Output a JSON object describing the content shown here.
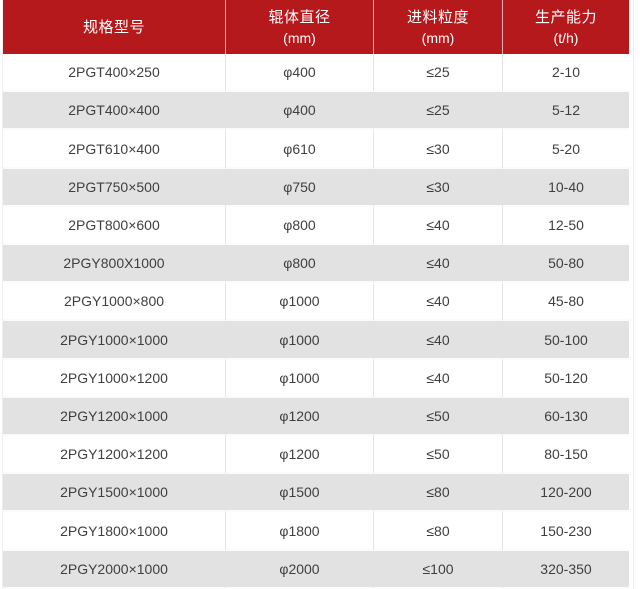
{
  "page": {
    "background": "#ffffff"
  },
  "colors": {
    "header_bg": "#b6191c",
    "header_text": "#ffffff",
    "row_bg": "#ffffff",
    "row_alt_bg": "#e2e2e2",
    "cell_text": "#3f3f3f",
    "grid_line": "#e4e4e4"
  },
  "table": {
    "columns": [
      {
        "title": "规格型号",
        "unit": ""
      },
      {
        "title": "辊体直径",
        "unit": "(mm)"
      },
      {
        "title": "进料粒度",
        "unit": "(mm)"
      },
      {
        "title": "生产能力",
        "unit": "(t/h)"
      }
    ],
    "rows": [
      [
        "2PGT400×250",
        "φ400",
        "≤25",
        "2-10"
      ],
      [
        "2PGT400×400",
        "φ400",
        "≤25",
        "5-12"
      ],
      [
        "2PGT610×400",
        "φ610",
        "≤30",
        "5-20"
      ],
      [
        "2PGT750×500",
        "φ750",
        "≤30",
        "10-40"
      ],
      [
        "2PGT800×600",
        "φ800",
        "≤40",
        "12-50"
      ],
      [
        "2PGY800X1000",
        "φ800",
        "≤40",
        "50-80"
      ],
      [
        "2PGY1000×800",
        "φ1000",
        "≤40",
        "45-80"
      ],
      [
        "2PGY1000×1000",
        "φ1000",
        "≤40",
        "50-100"
      ],
      [
        "2PGY1000×1200",
        "φ1000",
        "≤40",
        "50-120"
      ],
      [
        "2PGY1200×1000",
        "φ1200",
        "≤50",
        "60-130"
      ],
      [
        "2PGY1200×1200",
        "φ1200",
        "≤50",
        "80-150"
      ],
      [
        "2PGY1500×1000",
        "φ1500",
        "≤80",
        "120-200"
      ],
      [
        "2PGY1800×1000",
        "φ1800",
        "≤80",
        "150-230"
      ],
      [
        "2PGY2000×1000",
        "φ2000",
        "≤100",
        "320-350"
      ]
    ]
  },
  "chart_data": {
    "type": "table",
    "title": "",
    "columns": [
      "规格型号",
      "辊体直径 (mm)",
      "进料粒度 (mm)",
      "生产能力 (t/h)"
    ],
    "rows": [
      [
        "2PGT400×250",
        "φ400",
        "≤25",
        "2-10"
      ],
      [
        "2PGT400×400",
        "φ400",
        "≤25",
        "5-12"
      ],
      [
        "2PGT610×400",
        "φ610",
        "≤30",
        "5-20"
      ],
      [
        "2PGT750×500",
        "φ750",
        "≤30",
        "10-40"
      ],
      [
        "2PGT800×600",
        "φ800",
        "≤40",
        "12-50"
      ],
      [
        "2PGY800X1000",
        "φ800",
        "≤40",
        "50-80"
      ],
      [
        "2PGY1000×800",
        "φ1000",
        "≤40",
        "45-80"
      ],
      [
        "2PGY1000×1000",
        "φ1000",
        "≤40",
        "50-100"
      ],
      [
        "2PGY1000×1200",
        "φ1000",
        "≤40",
        "50-120"
      ],
      [
        "2PGY1200×1000",
        "φ1200",
        "≤50",
        "60-130"
      ],
      [
        "2PGY1200×1200",
        "φ1200",
        "≤50",
        "80-150"
      ],
      [
        "2PGY1500×1000",
        "φ1500",
        "≤80",
        "120-200"
      ],
      [
        "2PGY1800×1000",
        "φ1800",
        "≤80",
        "150-230"
      ],
      [
        "2PGY2000×1000",
        "φ2000",
        "≤100",
        "320-350"
      ]
    ]
  }
}
